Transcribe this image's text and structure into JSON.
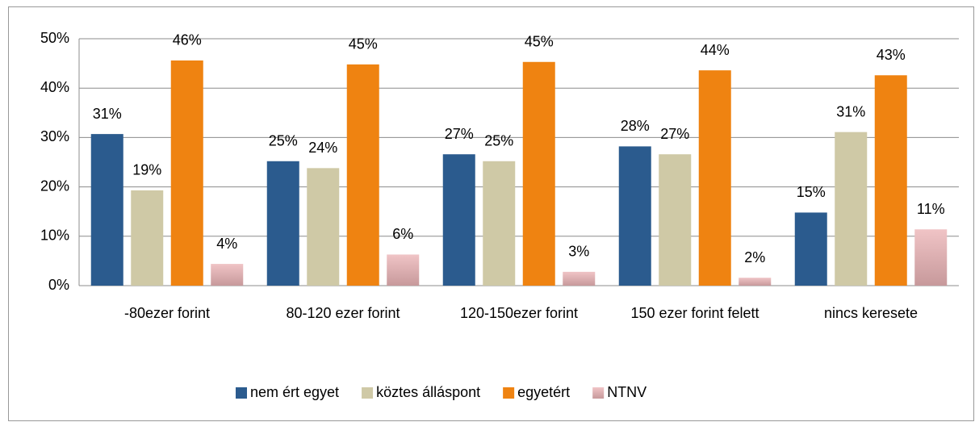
{
  "chart_data": {
    "type": "bar",
    "categories": [
      "-80ezer forint",
      "80-120 ezer forint",
      "120-150ezer forint",
      "150 ezer forint felett",
      "nincs keresete"
    ],
    "series": [
      {
        "name": "nem ért egyet",
        "color": "#2b5b8e",
        "values": [
          30.7,
          25.2,
          26.6,
          28.2,
          14.8
        ],
        "value_labels": [
          "31%",
          "25%",
          "27%",
          "28%",
          "15%"
        ]
      },
      {
        "name": "köztes álláspont",
        "color": "#cfc9a6",
        "values": [
          19.3,
          23.8,
          25.2,
          26.6,
          31.1
        ],
        "value_labels": [
          "19%",
          "24%",
          "25%",
          "27%",
          "31%"
        ]
      },
      {
        "name": "egyetért",
        "color": "#ef8311",
        "values": [
          45.6,
          44.8,
          45.3,
          43.6,
          42.6
        ],
        "value_labels": [
          "46%",
          "45%",
          "45%",
          "44%",
          "43%"
        ]
      },
      {
        "name": "NTNV",
        "color": "#e8b4b6",
        "values": [
          4.4,
          6.3,
          2.8,
          1.6,
          11.4
        ],
        "value_labels": [
          "4%",
          "6%",
          "3%",
          "2%",
          "11%"
        ]
      }
    ],
    "ylim": [
      0,
      50
    ],
    "yticks": [
      {
        "value": 0,
        "label": "0%"
      },
      {
        "value": 10,
        "label": "10%"
      },
      {
        "value": 20,
        "label": "20%"
      },
      {
        "value": 30,
        "label": "30%"
      },
      {
        "value": 40,
        "label": "40%"
      },
      {
        "value": 50,
        "label": "50%"
      }
    ],
    "grid": true,
    "legend": "bottom"
  }
}
